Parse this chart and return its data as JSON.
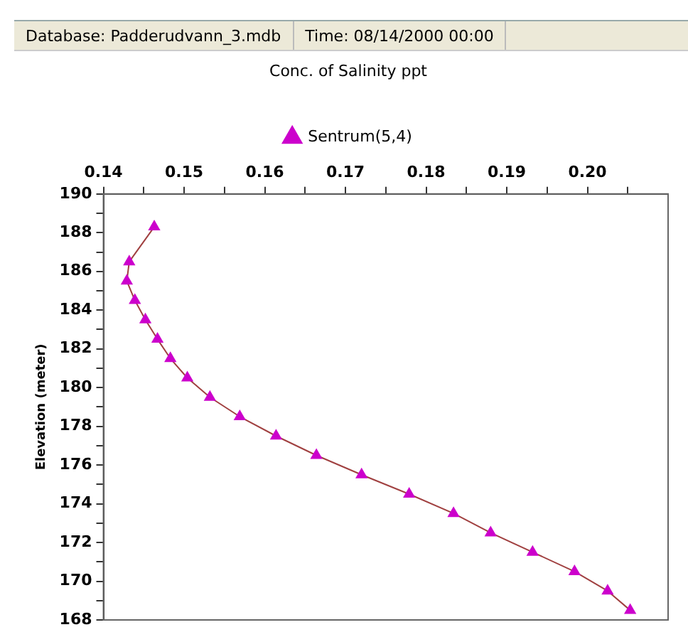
{
  "chart_data": {
    "type": "line",
    "title": "Conc. of Salinity ppt",
    "ylabel": "Elevation (meter)",
    "annotations": [
      "Database: Padderudvann_3.mdb",
      "Time: 08/14/2000 00:00"
    ],
    "series": [
      {
        "name": "Sentrum(5,4)",
        "color": "#cc00cc",
        "x": [
          0.1463,
          0.1432,
          0.1429,
          0.1439,
          0.1452,
          0.1467,
          0.1483,
          0.1504,
          0.1532,
          0.1569,
          0.1614,
          0.1664,
          0.172,
          0.1779,
          0.1834,
          0.188,
          0.1932,
          0.1984,
          0.2025,
          0.2053
        ],
        "values": [
          188.3,
          186.5,
          185.5,
          184.5,
          183.5,
          182.5,
          181.5,
          180.5,
          179.5,
          178.5,
          177.5,
          176.5,
          175.5,
          174.5,
          173.5,
          172.5,
          171.5,
          170.5,
          169.5,
          168.5
        ]
      }
    ],
    "xlim": [
      0.14,
      0.21
    ],
    "xticks": [
      0.14,
      {
        "value": 0.145,
        "label": null
      },
      0.15,
      {
        "value": 0.155,
        "label": null
      },
      0.16,
      {
        "value": 0.165,
        "label": null
      },
      0.17,
      {
        "value": 0.175,
        "label": null
      },
      0.18,
      {
        "value": 0.185,
        "label": null
      },
      0.19,
      {
        "value": 0.195,
        "label": null
      },
      {
        "value": 0.2,
        "label": "0.20"
      },
      {
        "value": 0.205,
        "label": null
      }
    ],
    "ylim": [
      168,
      190
    ],
    "yticks": [
      168,
      {
        "value": 169,
        "label": null
      },
      170,
      {
        "value": 171,
        "label": null
      },
      172,
      {
        "value": 173,
        "label": null
      },
      174,
      {
        "value": 175,
        "label": null
      },
      176,
      {
        "value": 177,
        "label": null
      },
      178,
      {
        "value": 179,
        "label": null
      },
      180,
      {
        "value": 181,
        "label": null
      },
      182,
      {
        "value": 183,
        "label": null
      },
      184,
      {
        "value": 185,
        "label": null
      },
      186,
      {
        "value": 187,
        "label": null
      },
      188,
      {
        "value": 189,
        "label": null
      },
      190
    ],
    "grid": false,
    "legend": "top",
    "marker": "triangle",
    "line_style": "solid"
  }
}
